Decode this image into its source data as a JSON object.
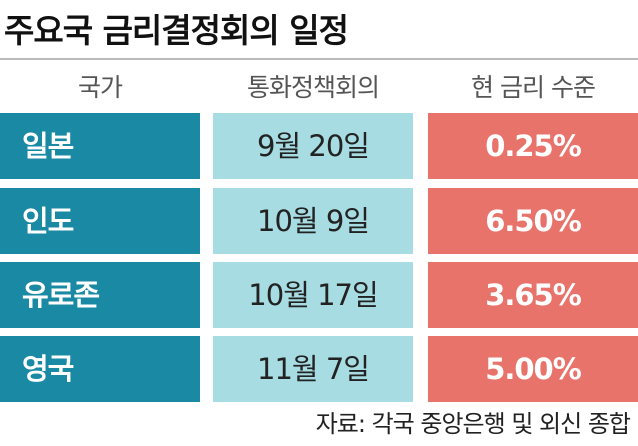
{
  "title": "주요국 금리결정회의 일정",
  "table": {
    "headers": [
      "국가",
      "통화정책회의",
      "현 금리 수준"
    ],
    "rows": [
      [
        "일본",
        "9월 20일",
        "0.25%"
      ],
      [
        "인도",
        "10월 9일",
        "6.50%"
      ],
      [
        "유로존",
        "10월 17일",
        "3.65%"
      ],
      [
        "영국",
        "11월 7일",
        "5.00%"
      ]
    ]
  },
  "source": "자료: 각국 중앙은행 및 외신 종합"
}
